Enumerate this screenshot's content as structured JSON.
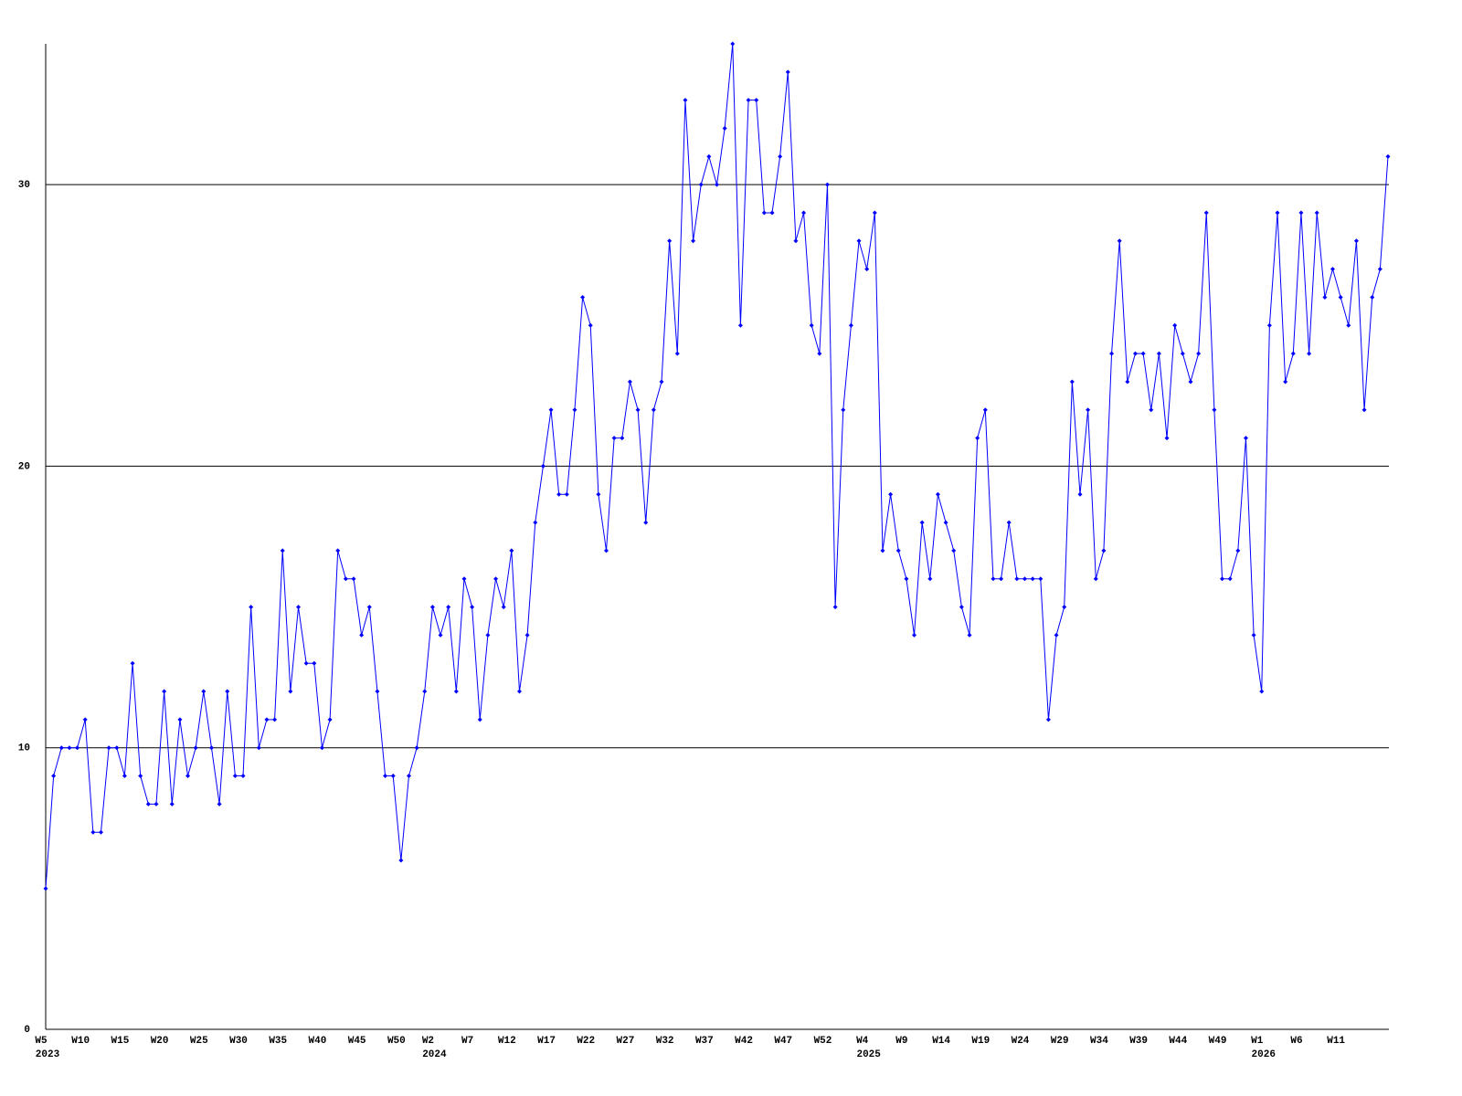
{
  "chart_data": {
    "type": "line",
    "ylim": [
      0,
      35
    ],
    "yticks": [
      0,
      10,
      20,
      30
    ],
    "grid": true,
    "categories": [
      "W5",
      null,
      null,
      null,
      null,
      "W10",
      null,
      null,
      null,
      null,
      "W15",
      null,
      null,
      null,
      null,
      "W20",
      null,
      null,
      null,
      null,
      "W25",
      null,
      null,
      null,
      null,
      "W30",
      null,
      null,
      null,
      null,
      "W35",
      null,
      null,
      null,
      null,
      "W40",
      null,
      null,
      null,
      null,
      "W45",
      null,
      null,
      null,
      null,
      "W50",
      null,
      null,
      null,
      "W2",
      null,
      null,
      null,
      null,
      "W7",
      null,
      null,
      null,
      null,
      "W12",
      null,
      null,
      null,
      null,
      "W17",
      null,
      null,
      null,
      null,
      "W22",
      null,
      null,
      null,
      null,
      "W27",
      null,
      null,
      null,
      null,
      "W32",
      null,
      null,
      null,
      null,
      "W37",
      null,
      null,
      null,
      null,
      "W42",
      null,
      null,
      null,
      null,
      "W47",
      null,
      null,
      null,
      null,
      "W52",
      null,
      null,
      null,
      null,
      "W4",
      null,
      null,
      null,
      null,
      "W9",
      null,
      null,
      null,
      null,
      "W14",
      null,
      null,
      null,
      null,
      "W19",
      null,
      null,
      null,
      null,
      "W24",
      null,
      null,
      null,
      null,
      "W29",
      null,
      null,
      null,
      null,
      "W34",
      null,
      null,
      null,
      null,
      "W39",
      null,
      null,
      null,
      null,
      "W44",
      null,
      null,
      null,
      null,
      "W49",
      null,
      null,
      null,
      null,
      "W1",
      null,
      null,
      null,
      null,
      "W6",
      null,
      null,
      null,
      null,
      "W11",
      null,
      null,
      null,
      null,
      null,
      null
    ],
    "years": [
      "2023",
      null,
      null,
      null,
      null,
      null,
      null,
      null,
      null,
      null,
      null,
      null,
      null,
      null,
      null,
      null,
      null,
      null,
      null,
      null,
      null,
      null,
      null,
      null,
      null,
      null,
      null,
      null,
      null,
      null,
      null,
      null,
      null,
      null,
      null,
      null,
      null,
      null,
      null,
      null,
      null,
      null,
      null,
      null,
      null,
      null,
      null,
      null,
      null,
      "2024",
      null,
      null,
      null,
      null,
      null,
      null,
      null,
      null,
      null,
      null,
      null,
      null,
      null,
      null,
      null,
      null,
      null,
      null,
      null,
      null,
      null,
      null,
      null,
      null,
      null,
      null,
      null,
      null,
      null,
      null,
      null,
      null,
      null,
      null,
      null,
      null,
      null,
      null,
      null,
      null,
      null,
      null,
      null,
      null,
      null,
      null,
      null,
      null,
      null,
      null,
      null,
      null,
      null,
      null,
      "2025",
      null,
      null,
      null,
      null,
      null,
      null,
      null,
      null,
      null,
      null,
      null,
      null,
      null,
      null,
      null,
      null,
      null,
      null,
      null,
      null,
      null,
      null,
      null,
      null,
      null,
      null,
      null,
      null,
      null,
      null,
      null,
      null,
      null,
      null,
      null,
      null,
      null,
      null,
      null,
      null,
      null,
      null,
      null,
      null,
      null,
      null,
      null,
      null,
      null,
      "2026",
      null,
      null,
      null,
      null,
      null,
      null,
      null,
      null,
      null,
      null,
      null,
      null,
      null,
      null,
      null,
      null
    ],
    "series": [
      {
        "color": "#0000ff",
        "values": [
          5,
          9,
          10,
          10,
          10,
          11,
          7,
          7,
          10,
          10,
          9,
          13,
          9,
          8,
          8,
          12,
          8,
          11,
          9,
          10,
          12,
          10,
          8,
          12,
          9,
          9,
          15,
          10,
          11,
          11,
          17,
          12,
          15,
          13,
          13,
          10,
          11,
          17,
          16,
          16,
          14,
          15,
          12,
          9,
          9,
          6,
          9,
          10,
          12,
          15,
          14,
          15,
          12,
          16,
          15,
          11,
          14,
          16,
          15,
          17,
          12,
          14,
          18,
          20,
          22,
          19,
          19,
          22,
          26,
          25,
          19,
          17,
          21,
          21,
          23,
          22,
          18,
          22,
          23,
          28,
          24,
          33,
          28,
          30,
          31,
          30,
          32,
          35,
          25,
          33,
          33,
          29,
          29,
          31,
          34,
          28,
          29,
          25,
          24,
          30,
          15,
          22,
          25,
          28,
          27,
          29,
          17,
          19,
          17,
          16,
          14,
          18,
          16,
          19,
          18,
          17,
          15,
          14,
          21,
          22,
          16,
          16,
          18,
          16,
          16,
          16,
          16,
          11,
          14,
          15,
          23,
          19,
          22,
          16,
          17,
          24,
          28,
          23,
          24,
          24,
          22,
          24,
          21,
          25,
          24,
          23,
          24,
          29,
          22,
          16,
          16,
          17,
          21,
          14,
          12,
          25,
          29,
          23,
          24,
          29,
          24,
          29,
          26,
          27,
          26,
          25,
          28,
          22,
          26,
          27,
          31
        ]
      }
    ]
  }
}
